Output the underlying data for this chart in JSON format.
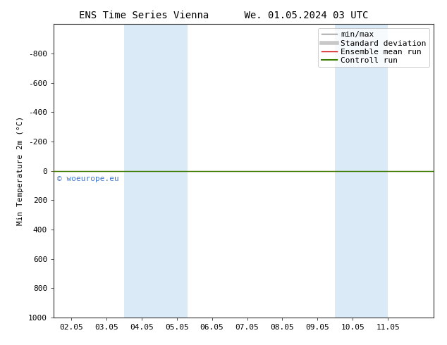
{
  "title_left": "ENS Time Series Vienna",
  "title_right": "We. 01.05.2024 03 UTC",
  "ylabel": "Min Temperature 2m (°C)",
  "ylim_top": -1000,
  "ylim_bottom": 1000,
  "yticks": [
    -800,
    -600,
    -400,
    -200,
    0,
    200,
    400,
    600,
    800,
    1000
  ],
  "ytick_labels": [
    "-800",
    "-600",
    "-400",
    "-200",
    "0",
    "200",
    "400",
    "600",
    "800",
    "1000"
  ],
  "xlim": [
    0.0,
    10.8
  ],
  "xtick_positions": [
    0.5,
    1.5,
    2.5,
    3.5,
    4.5,
    5.5,
    6.5,
    7.5,
    8.5,
    9.5
  ],
  "xtick_labels": [
    "02.05",
    "03.05",
    "04.05",
    "05.05",
    "06.05",
    "07.05",
    "08.05",
    "09.05",
    "10.05",
    "11.05"
  ],
  "shaded_bands": [
    {
      "xstart": 2.0,
      "xend": 3.8,
      "color": "#daeaf7"
    },
    {
      "xstart": 8.0,
      "xend": 9.5,
      "color": "#daeaf7"
    }
  ],
  "green_line_y": 0,
  "green_line_color": "#3a7d00",
  "red_line_y": 0,
  "red_line_color": "#cc0000",
  "minmax_line_color": "#888888",
  "std_fill_color": "#c8c8c8",
  "background_color": "#ffffff",
  "plot_bg_color": "#ffffff",
  "watermark_text": "© woeurope.eu",
  "watermark_color": "#4477cc",
  "legend_items": [
    "min/max",
    "Standard deviation",
    "Ensemble mean run",
    "Controll run"
  ],
  "legend_line_colors": [
    "#888888",
    "#c8c8c8",
    "#cc0000",
    "#3a7d00"
  ],
  "title_fontsize": 10,
  "axis_fontsize": 8,
  "tick_fontsize": 8,
  "legend_fontsize": 8
}
